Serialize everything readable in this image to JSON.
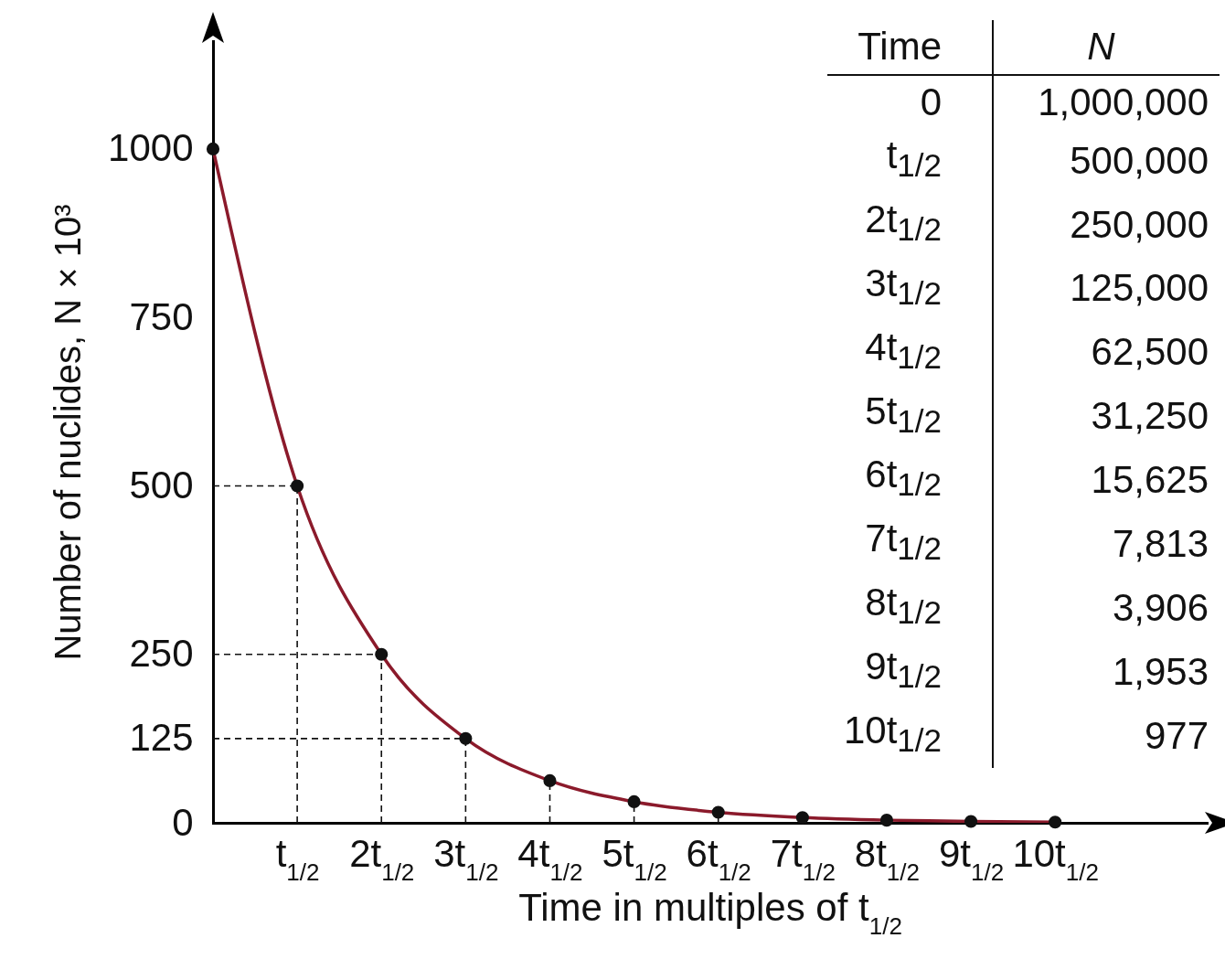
{
  "chart_data": {
    "type": "line",
    "xlabel": "Time in multiples of t$_{1/2}$",
    "ylabel": "Number of nuclides, N × 10³",
    "annotations": [
      "Time",
      "N",
      "0",
      "1,000,000",
      "t$_{1/2}$",
      "500,000",
      "2t$_{1/2}$",
      "250,000",
      "3t$_{1/2}$",
      "125,000",
      "4t$_{1/2}$",
      "62,500",
      "5t$_{1/2}$",
      "31,250",
      "6t$_{1/2}$",
      "15,625",
      "7t$_{1/2}$",
      "7,813",
      "8t$_{1/2}$",
      "3,906",
      "9t$_{1/2}$",
      "1,953",
      "10t$_{1/2}$",
      "977"
    ],
    "categories": [
      null,
      "t$_{1/2}$",
      "2t$_{1/2}$",
      "3t$_{1/2}$",
      "4t$_{1/2}$",
      "5t$_{1/2}$",
      "6t$_{1/2}$",
      "7t$_{1/2}$",
      "8t$_{1/2}$",
      "9t$_{1/2}$",
      "10t$_{1/2}$"
    ],
    "values": [
      1000,
      500,
      250,
      125,
      62.5,
      31.3,
      15.6,
      7.8,
      3.9,
      2.0,
      1.0
    ],
    "color": "#8b1a2b",
    "marker": "circle",
    "grid": false,
    "ylim": [
      0,
      1160
    ],
    "yticks": [
      0,
      125,
      250,
      500,
      750,
      1000
    ]
  }
}
